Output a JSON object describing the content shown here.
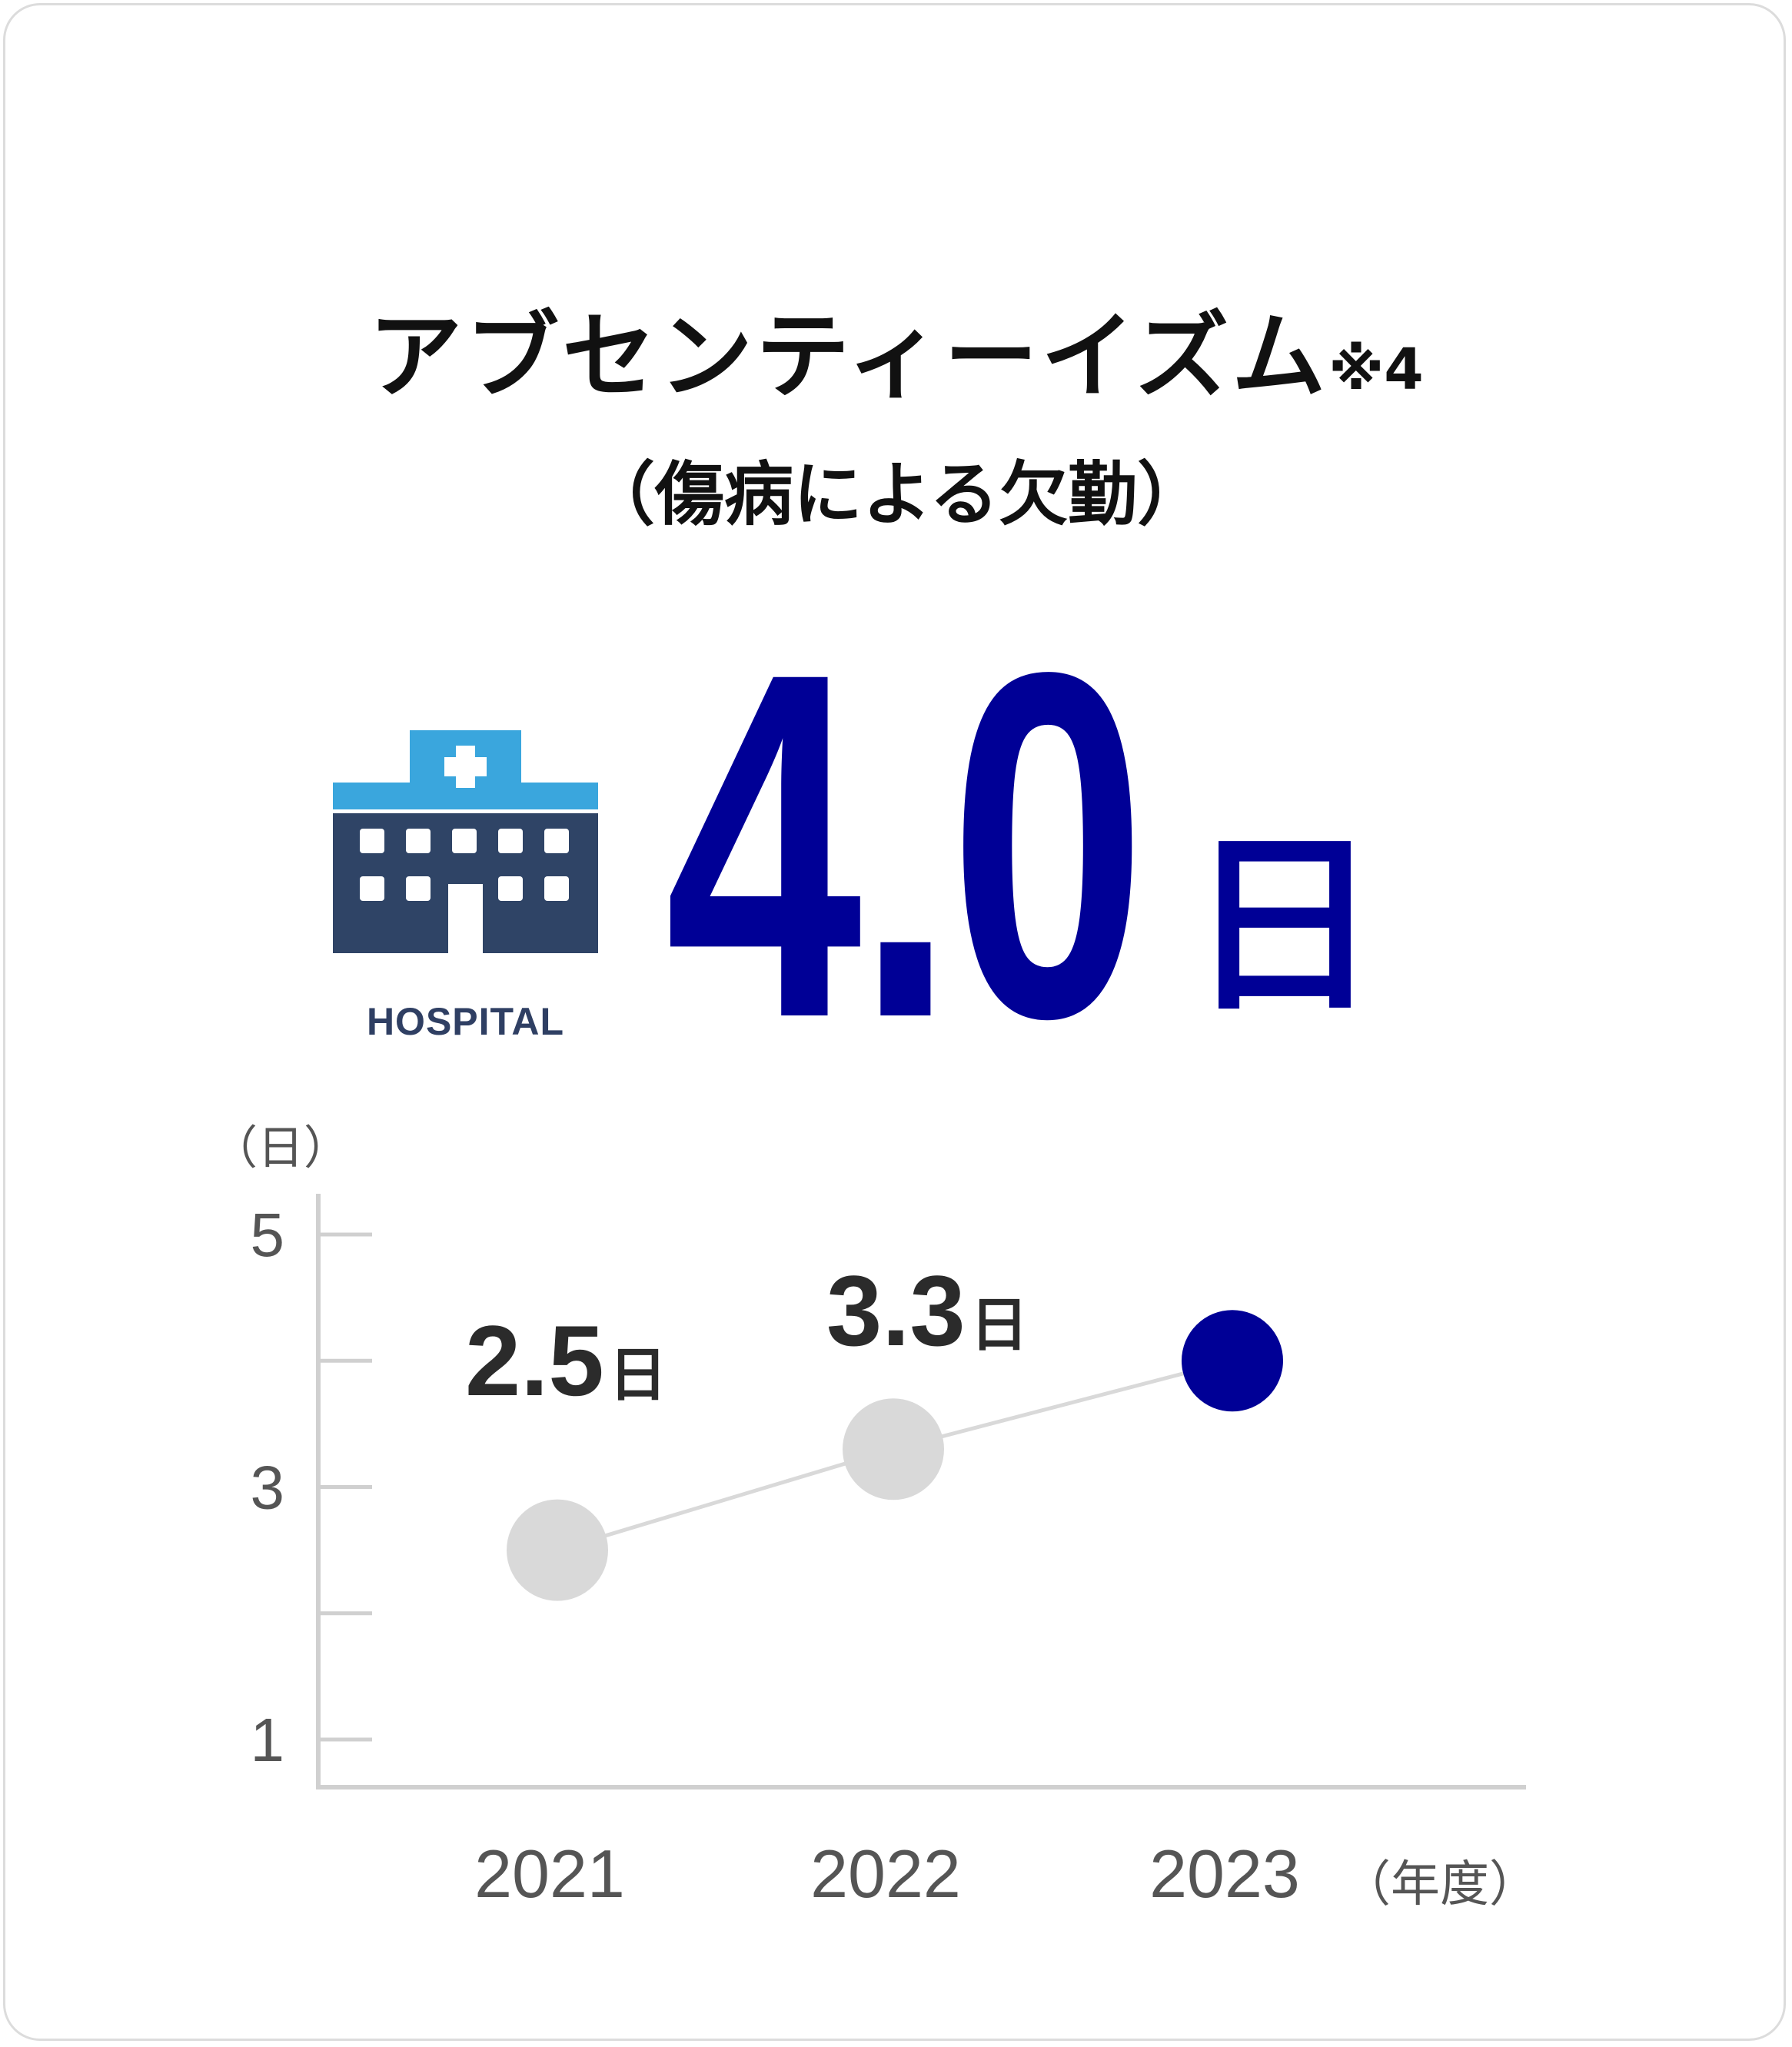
{
  "header": {
    "title": "アブセンティーイズム",
    "title_note": "※4",
    "subtitle": "（傷病による欠勤）"
  },
  "kpi": {
    "icon": "hospital-icon",
    "icon_label": "HOSPITAL",
    "value": "4.0",
    "unit": "日"
  },
  "colors": {
    "accent": "#000096",
    "past_points": "#d9d9d9",
    "line": "#d9d9d9",
    "axis": "#d0d0d0"
  },
  "chart_data": {
    "type": "line",
    "x": [
      "2021",
      "2022",
      "2023"
    ],
    "series": [
      {
        "values": [
          2.5,
          3.3,
          4.0
        ]
      }
    ],
    "data_labels": [
      {
        "num": "2.5",
        "unit": "日"
      },
      {
        "num": "3.3",
        "unit": "日"
      },
      {
        "num": "",
        "unit": ""
      }
    ],
    "ylim": [
      0.5,
      5.3
    ],
    "yticks": [
      1,
      2,
      3,
      4,
      5
    ],
    "ytick_labels": [
      "1",
      "",
      "3",
      "",
      "5"
    ],
    "ylabel": "（日）",
    "xlabel": "（年度）",
    "highlight_index": 2,
    "grid": false
  }
}
